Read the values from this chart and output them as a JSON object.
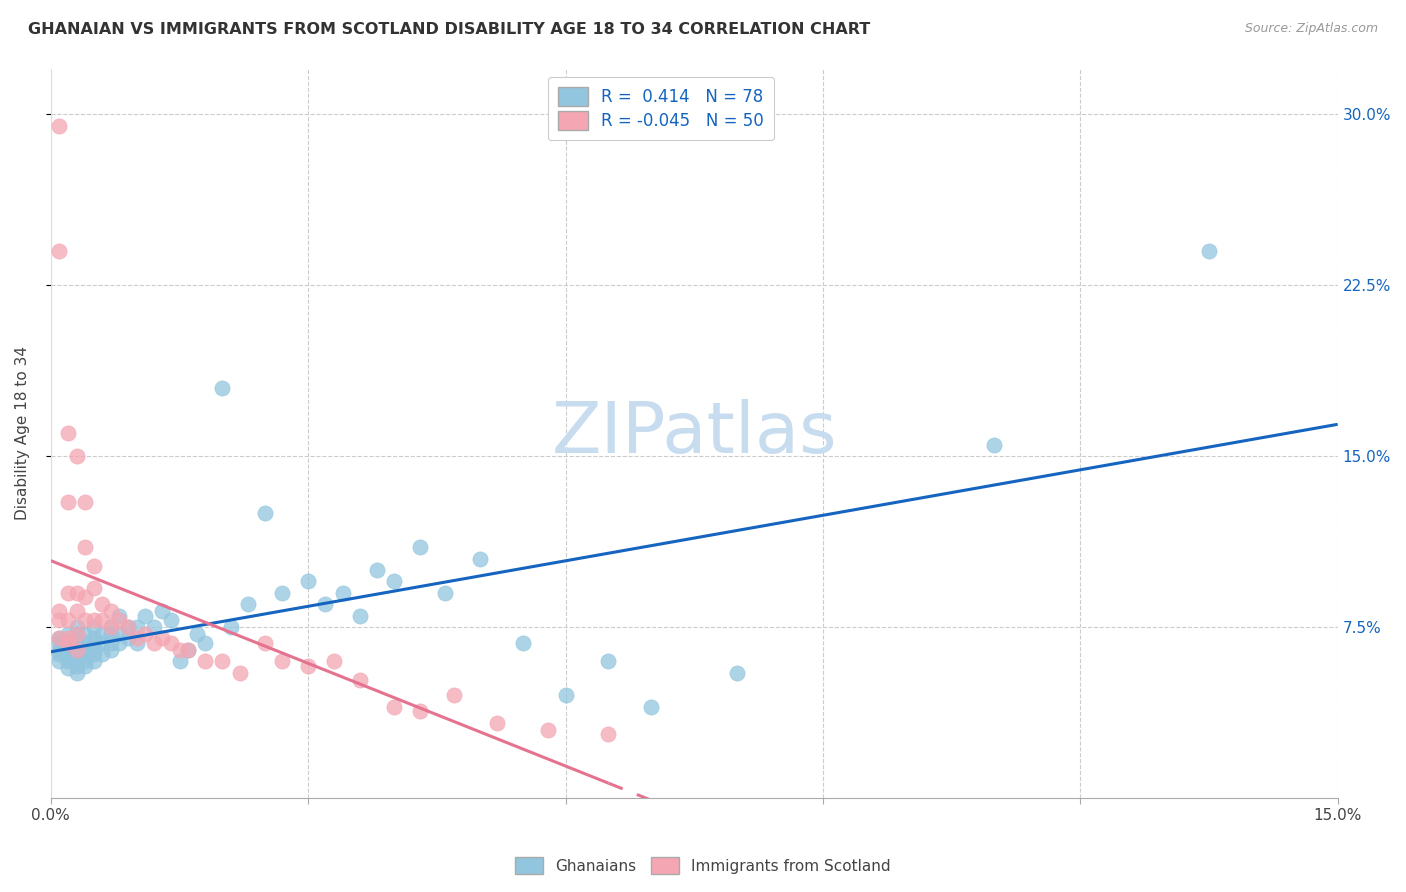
{
  "title": "GHANAIAN VS IMMIGRANTS FROM SCOTLAND DISABILITY AGE 18 TO 34 CORRELATION CHART",
  "source": "Source: ZipAtlas.com",
  "ylabel": "Disability Age 18 to 34",
  "xlim": [
    0.0,
    0.15
  ],
  "ylim": [
    0.0,
    0.32
  ],
  "xticks": [
    0.0,
    0.03,
    0.06,
    0.09,
    0.12,
    0.15
  ],
  "xtick_labels": [
    "0.0%",
    "",
    "",
    "",
    "",
    "15.0%"
  ],
  "yticks": [
    0.075,
    0.15,
    0.225,
    0.3
  ],
  "ytick_labels": [
    "7.5%",
    "15.0%",
    "22.5%",
    "30.0%"
  ],
  "blue_color": "#92C5DE",
  "pink_color": "#F4A6B2",
  "blue_line_color": "#1565C0",
  "pink_line_color": "#E57390",
  "watermark_color": "#C8DCF0",
  "blue_r": 0.414,
  "blue_n": 78,
  "pink_r": -0.045,
  "pink_n": 50,
  "ghanaian_x": [
    0.001,
    0.001,
    0.001,
    0.001,
    0.001,
    0.002,
    0.002,
    0.002,
    0.002,
    0.002,
    0.002,
    0.002,
    0.002,
    0.003,
    0.003,
    0.003,
    0.003,
    0.003,
    0.003,
    0.003,
    0.003,
    0.003,
    0.003,
    0.004,
    0.004,
    0.004,
    0.004,
    0.004,
    0.004,
    0.005,
    0.005,
    0.005,
    0.005,
    0.005,
    0.005,
    0.006,
    0.006,
    0.006,
    0.007,
    0.007,
    0.007,
    0.007,
    0.008,
    0.008,
    0.008,
    0.009,
    0.009,
    0.01,
    0.01,
    0.011,
    0.012,
    0.013,
    0.014,
    0.015,
    0.016,
    0.017,
    0.018,
    0.02,
    0.021,
    0.023,
    0.025,
    0.027,
    0.03,
    0.032,
    0.034,
    0.036,
    0.038,
    0.04,
    0.043,
    0.046,
    0.05,
    0.055,
    0.06,
    0.065,
    0.07,
    0.08,
    0.11,
    0.135
  ],
  "ghanaian_y": [
    0.06,
    0.063,
    0.065,
    0.068,
    0.07,
    0.057,
    0.06,
    0.062,
    0.064,
    0.065,
    0.067,
    0.069,
    0.072,
    0.055,
    0.058,
    0.06,
    0.062,
    0.063,
    0.065,
    0.067,
    0.07,
    0.072,
    0.075,
    0.058,
    0.06,
    0.063,
    0.065,
    0.068,
    0.072,
    0.06,
    0.063,
    0.065,
    0.068,
    0.07,
    0.075,
    0.063,
    0.068,
    0.072,
    0.065,
    0.068,
    0.072,
    0.075,
    0.068,
    0.072,
    0.08,
    0.07,
    0.075,
    0.068,
    0.075,
    0.08,
    0.075,
    0.082,
    0.078,
    0.06,
    0.065,
    0.072,
    0.068,
    0.18,
    0.075,
    0.085,
    0.125,
    0.09,
    0.095,
    0.085,
    0.09,
    0.08,
    0.1,
    0.095,
    0.11,
    0.09,
    0.105,
    0.068,
    0.045,
    0.06,
    0.04,
    0.055,
    0.155,
    0.24
  ],
  "scotland_x": [
    0.001,
    0.001,
    0.001,
    0.001,
    0.001,
    0.002,
    0.002,
    0.002,
    0.002,
    0.002,
    0.002,
    0.003,
    0.003,
    0.003,
    0.003,
    0.003,
    0.004,
    0.004,
    0.004,
    0.004,
    0.005,
    0.005,
    0.005,
    0.006,
    0.006,
    0.007,
    0.007,
    0.008,
    0.009,
    0.01,
    0.011,
    0.012,
    0.013,
    0.014,
    0.015,
    0.016,
    0.018,
    0.02,
    0.022,
    0.025,
    0.027,
    0.03,
    0.033,
    0.036,
    0.04,
    0.043,
    0.047,
    0.052,
    0.058,
    0.065
  ],
  "scotland_y": [
    0.295,
    0.082,
    0.24,
    0.078,
    0.07,
    0.16,
    0.13,
    0.09,
    0.078,
    0.07,
    0.068,
    0.15,
    0.09,
    0.082,
    0.072,
    0.065,
    0.13,
    0.11,
    0.088,
    0.078,
    0.102,
    0.092,
    0.078,
    0.085,
    0.078,
    0.082,
    0.075,
    0.078,
    0.075,
    0.07,
    0.072,
    0.068,
    0.07,
    0.068,
    0.065,
    0.065,
    0.06,
    0.06,
    0.055,
    0.068,
    0.06,
    0.058,
    0.06,
    0.052,
    0.04,
    0.038,
    0.045,
    0.033,
    0.03,
    0.028
  ]
}
